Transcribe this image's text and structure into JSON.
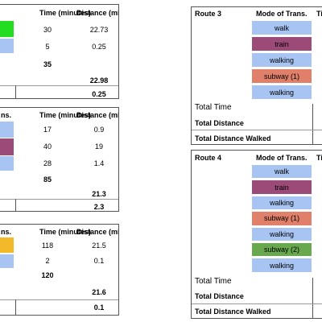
{
  "headers": {
    "mode_trans_cut": "ns.",
    "mode_trans": "Mode of Trans.",
    "time_minutes": "Time (minutes)",
    "distance_miles": "Distance (miles)",
    "time_cut": "Ti"
  },
  "labels": {
    "total_time": "Total Time",
    "total_distance": "Total Distance",
    "total_distance_walked": "Total Distance Walked"
  },
  "route1": {
    "rows": [
      {
        "time": "30",
        "distance": "22.73",
        "color": "#22dd22"
      },
      {
        "time": "5",
        "distance": "0.25",
        "color": "#a8c4f2"
      }
    ],
    "total_time": "35",
    "total_distance": "22.98",
    "total_walked": "0.25"
  },
  "route2": {
    "rows": [
      {
        "time": "17",
        "distance": "0.9",
        "color": "#a8c4f2"
      },
      {
        "time": "40",
        "distance": "19",
        "color": "#9c4a78"
      },
      {
        "time": "28",
        "distance": "1.4",
        "color": "#a8c4f2"
      }
    ],
    "total_time": "85",
    "total_distance": "21.3",
    "total_walked": "2.3"
  },
  "route5": {
    "rows": [
      {
        "time": "118",
        "distance": "21.5",
        "color": "#f2b92a"
      },
      {
        "time": "2",
        "distance": "0.1",
        "color": "#a8c4f2"
      }
    ],
    "total_time": "120",
    "total_distance": "21.6",
    "total_walked": "0.1"
  },
  "route3": {
    "title": "Route 3",
    "modes": [
      {
        "label": "walk",
        "color": "#a8c4f2"
      },
      {
        "label": "train",
        "color": "#9c4a78"
      },
      {
        "label": "walking",
        "color": "#a8c4f2"
      },
      {
        "label": "subway (1)",
        "color": "#e0806a"
      },
      {
        "label": "walking",
        "color": "#a8c4f2"
      }
    ]
  },
  "route4": {
    "title": "Route 4",
    "modes": [
      {
        "label": "walk",
        "color": "#a8c4f2"
      },
      {
        "label": "train",
        "color": "#9c4a78"
      },
      {
        "label": "walking",
        "color": "#a8c4f2"
      },
      {
        "label": "subway (1)",
        "color": "#e0806a"
      },
      {
        "label": "walking",
        "color": "#a8c4f2"
      },
      {
        "label": "subway (2)",
        "color": "#6aa84f"
      },
      {
        "label": "walking",
        "color": "#a8c4f2"
      }
    ]
  }
}
